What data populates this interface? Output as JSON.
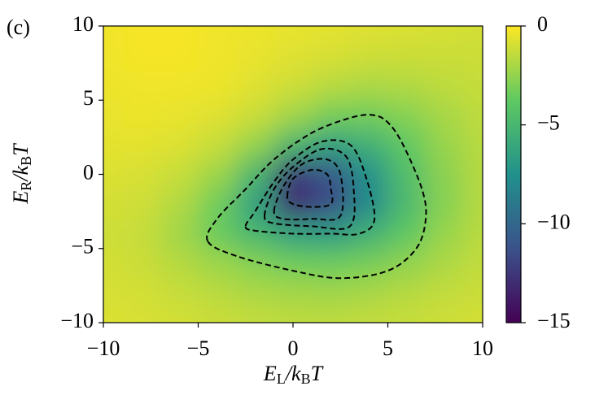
{
  "chart_data": {
    "type": "heatmap",
    "panel_label": "(c)",
    "xlabel": "E_L/k_BT",
    "ylabel": "E_R/k_BT",
    "xlim": [
      -10,
      10
    ],
    "ylim": [
      -10,
      10
    ],
    "xticks": [
      {
        "value": -10,
        "label": "−10"
      },
      {
        "value": -5,
        "label": "−5"
      },
      0,
      5,
      10
    ],
    "yticks": [
      {
        "value": -10,
        "label": "−10"
      },
      {
        "value": -5,
        "label": "−5"
      },
      0,
      5,
      10
    ],
    "clim": [
      -15,
      0
    ],
    "cticks": [
      0,
      {
        "value": -5,
        "label": "−5"
      },
      {
        "value": -10,
        "label": "−10"
      },
      {
        "value": -15,
        "label": "−15"
      }
    ],
    "colorscale": [
      "#440154",
      "#3b528b",
      "#21918c",
      "#5ec962",
      "#fde725"
    ],
    "x": [
      -10,
      -8,
      -6,
      -4,
      -2,
      0,
      2,
      4,
      6,
      8,
      10
    ],
    "y": [
      10,
      8,
      6,
      4,
      2,
      0,
      -2,
      -4,
      -6,
      -8,
      -10
    ],
    "z": [
      [
        -0.3,
        -0.2,
        -0.2,
        -0.3,
        -0.4,
        -0.5,
        -0.6,
        -0.7,
        -0.8,
        -0.9,
        -1.0
      ],
      [
        -0.3,
        -0.2,
        -0.2,
        -0.3,
        -0.5,
        -0.7,
        -0.9,
        -1.1,
        -1.2,
        -1.2,
        -1.2
      ],
      [
        -0.4,
        -0.3,
        -0.3,
        -0.4,
        -0.7,
        -1.1,
        -1.6,
        -1.9,
        -1.8,
        -1.5,
        -1.3
      ],
      [
        -0.5,
        -0.4,
        -0.5,
        -0.7,
        -1.2,
        -2.2,
        -3.2,
        -3.3,
        -2.8,
        -2.0,
        -1.5
      ],
      [
        -0.6,
        -0.6,
        -0.8,
        -1.3,
        -2.5,
        -5.0,
        -6.5,
        -5.5,
        -3.8,
        -2.4,
        -1.6
      ],
      [
        -0.8,
        -0.9,
        -1.3,
        -2.3,
        -5.0,
        -12.5,
        -11.0,
        -7.5,
        -4.5,
        -2.7,
        -1.7
      ],
      [
        -1.0,
        -1.1,
        -1.8,
        -3.4,
        -6.5,
        -13.0,
        -11.5,
        -8.0,
        -4.8,
        -2.8,
        -1.7
      ],
      [
        -1.1,
        -1.3,
        -2.2,
        -3.5,
        -5.0,
        -6.5,
        -6.8,
        -5.5,
        -3.8,
        -2.4,
        -1.6
      ],
      [
        -1.0,
        -1.2,
        -1.7,
        -2.3,
        -2.9,
        -3.4,
        -3.5,
        -3.2,
        -2.6,
        -1.9,
        -1.4
      ],
      [
        -0.9,
        -1.0,
        -1.3,
        -1.6,
        -1.9,
        -2.1,
        -2.2,
        -2.0,
        -1.7,
        -1.4,
        -1.2
      ],
      [
        -0.8,
        -0.9,
        -1.0,
        -1.2,
        -1.4,
        -1.5,
        -1.5,
        -1.4,
        -1.3,
        -1.1,
        -1.0
      ]
    ],
    "contours": [
      {
        "x": [
          -4.5,
          -4,
          -2.5,
          -1,
          1,
          3,
          4.2,
          5,
          5.8,
          6.8,
          7,
          6.5,
          5,
          2.5,
          0,
          -3,
          -4.5
        ],
        "y": [
          -4.5,
          -3,
          -1,
          1,
          2.8,
          3.8,
          4,
          3.5,
          2,
          -1,
          -3,
          -5,
          -6.5,
          -7,
          -6.5,
          -5.5,
          -4.5
        ]
      },
      {
        "x": [
          -2.5,
          -2,
          -1,
          0,
          1.5,
          3,
          3.8,
          4.3,
          3.5,
          2,
          0,
          -2,
          -2.5
        ],
        "y": [
          -3.5,
          -2.5,
          -0.5,
          1,
          2.2,
          2,
          0,
          -3,
          -4,
          -4,
          -4,
          -3.8,
          -3.5
        ]
      },
      {
        "x": [
          -1.5,
          -1,
          0,
          1.5,
          2.8,
          3.2,
          3,
          1,
          -1,
          -1.5
        ],
        "y": [
          -2.8,
          -1,
          0.5,
          1.7,
          1.2,
          -1,
          -3.5,
          -3.5,
          -3.3,
          -2.8
        ]
      },
      {
        "x": [
          -1,
          -0.5,
          0.5,
          1.8,
          2.5,
          2.5,
          1,
          -0.5,
          -1
        ],
        "y": [
          -2.5,
          -0.8,
          0.7,
          1,
          0,
          -2.8,
          -3,
          -3,
          -2.5
        ]
      },
      {
        "x": [
          -0.3,
          0,
          1,
          1.8,
          2,
          2,
          1,
          0,
          -0.3
        ],
        "y": [
          -1.5,
          -0.3,
          0.3,
          0,
          -1,
          -2,
          -2.2,
          -2,
          -1.5
        ]
      }
    ]
  }
}
